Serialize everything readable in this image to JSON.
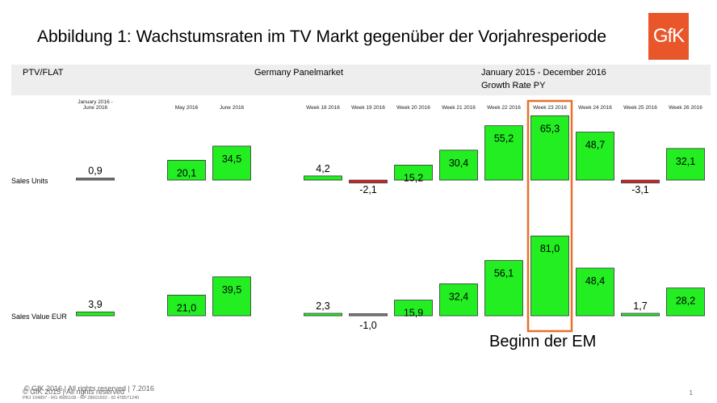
{
  "title": "Abbildung  1: Wachstumsraten  im TV Markt gegenüber der Vorjahresperiode",
  "logo_text": "GfK",
  "header": {
    "left": "PTV/FLAT",
    "center": "Germany Panelmarket",
    "right_line1": "January 2015 - December 2016",
    "right_line2": "Growth Rate PY"
  },
  "annotation": "Beginn der EM",
  "footer": {
    "copyright": "© GfK 2015 | All rights reserved",
    "copyright_shadow": "© GfK 2016 | All rights reserved | 7.2016",
    "ref": "PRJ 104897 - RG 4585108 - RP 28601832 - ID 478571240",
    "page": "1"
  },
  "colors": {
    "positive": "#22ee22",
    "negative": "#cc2222",
    "neutral": "#808080",
    "highlight": "#e8702a"
  },
  "chart_data": {
    "type": "bar",
    "categories": [
      "January 2016 - June 2016",
      "May 2016",
      "June 2016",
      "Week 18 2016",
      "Week 19 2016",
      "Week 20 2016",
      "Week 21 2016",
      "Week 22 2016",
      "Week 23 2016",
      "Week 24 2016",
      "Week 25 2016",
      "Week 26 2016"
    ],
    "series": [
      {
        "name": "Sales Units",
        "values": [
          0.9,
          20.1,
          34.5,
          4.2,
          -2.1,
          15.2,
          30.4,
          55.2,
          65.3,
          48.7,
          -3.1,
          32.1
        ],
        "labels": [
          "0,9",
          "20,1",
          "34,5",
          "4,2",
          "-2,1",
          "15,2",
          "30,4",
          "55,2",
          "65,3",
          "48,7",
          "-3,1",
          "32,1"
        ]
      },
      {
        "name": "Sales Value EUR",
        "values": [
          3.9,
          21.0,
          39.5,
          2.3,
          -1.0,
          15.9,
          32.4,
          56.1,
          81.0,
          48.4,
          1.7,
          28.2
        ],
        "labels": [
          "3,9",
          "21,0",
          "39,5",
          "2,3",
          "-1,0",
          "15,9",
          "32,4",
          "56,1",
          "81,0",
          "48,4",
          "1,7",
          "28,2"
        ]
      }
    ],
    "highlighted_category": "Week 23 2016"
  }
}
